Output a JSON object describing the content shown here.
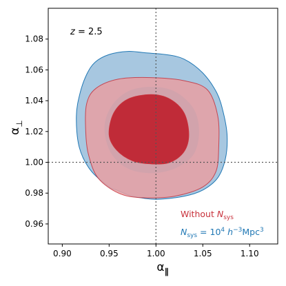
{
  "chart_data": {
    "type": "contour",
    "xlabel": "α∥",
    "ylabel": "α⊥",
    "xlim": [
      0.885,
      1.13
    ],
    "ylim": [
      0.947,
      1.1
    ],
    "xticks": [
      "0.90",
      "0.95",
      "1.00",
      "1.05",
      "1.10"
    ],
    "yticks": [
      "0.96",
      "0.98",
      "1.00",
      "1.02",
      "1.04",
      "1.06",
      "1.08"
    ],
    "reference_lines": {
      "x": 1.0,
      "y": 1.0
    },
    "annotation": "z = 2.5",
    "series": [
      {
        "name": "Nsys = 10^4 h^-3 Mpc^3",
        "color": "#1f77b4",
        "fill": "#a7c7e0",
        "contours": [
          {
            "level": "95%",
            "points": [
              [
                0.915,
                1.03
              ],
              [
                0.919,
                1.045
              ],
              [
                0.926,
                1.057
              ],
              [
                0.935,
                1.065
              ],
              [
                0.95,
                1.07
              ],
              [
                0.97,
                1.072
              ],
              [
                0.99,
                1.071
              ],
              [
                1.01,
                1.07
              ],
              [
                1.03,
                1.067
              ],
              [
                1.05,
                1.058
              ],
              [
                1.065,
                1.045
              ],
              [
                1.072,
                1.032
              ],
              [
                1.076,
                1.017
              ],
              [
                1.074,
                1.002
              ],
              [
                1.066,
                0.99
              ],
              [
                1.05,
                0.982
              ],
              [
                1.03,
                0.978
              ],
              [
                1.0,
                0.976
              ],
              [
                0.975,
                0.978
              ],
              [
                0.958,
                0.982
              ],
              [
                0.95,
                0.984
              ],
              [
                0.93,
                0.995
              ],
              [
                0.918,
                1.01
              ]
            ]
          }
        ]
      },
      {
        "name": "Without Nsys",
        "color": "#c8303a",
        "fill": "#e8a0a3",
        "contours": [
          {
            "level": "95%",
            "points": [
              [
                0.925,
                1.02
              ],
              [
                0.926,
                1.038
              ],
              [
                0.936,
                1.048
              ],
              [
                0.96,
                1.054
              ],
              [
                0.995,
                1.055
              ],
              [
                1.03,
                1.053
              ],
              [
                1.055,
                1.047
              ],
              [
                1.066,
                1.03
              ],
              [
                1.067,
                1.01
              ],
              [
                1.064,
                0.994
              ],
              [
                1.05,
                0.984
              ],
              [
                1.02,
                0.978
              ],
              [
                0.985,
                0.977
              ],
              [
                0.96,
                0.98
              ],
              [
                0.938,
                0.99
              ],
              [
                0.928,
                1.005
              ]
            ]
          },
          {
            "level": "68%",
            "points": [
              [
                0.95,
                1.018
              ],
              [
                0.955,
                1.032
              ],
              [
                0.97,
                1.041
              ],
              [
                0.995,
                1.044
              ],
              [
                1.015,
                1.041
              ],
              [
                1.03,
                1.032
              ],
              [
                1.035,
                1.018
              ],
              [
                1.03,
                1.007
              ],
              [
                1.015,
                1.0
              ],
              [
                0.995,
                0.999
              ],
              [
                0.975,
                1.001
              ],
              [
                0.958,
                1.008
              ]
            ]
          }
        ]
      }
    ],
    "legend": [
      {
        "text": "Without Nsys",
        "color": "#c8303a"
      },
      {
        "text": "Nsys = 10^4 h^-3 Mpc^3",
        "color": "#1f77b4"
      }
    ]
  }
}
